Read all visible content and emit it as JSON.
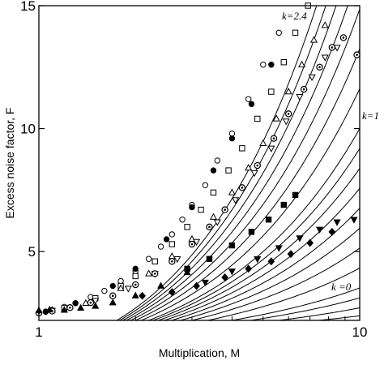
{
  "chart_data": {
    "type": "scatter",
    "xlabel": "Multiplication, M",
    "ylabel": "Excess noise factor, F",
    "xscale": "log",
    "xlim": [
      1,
      10
    ],
    "ylim": [
      2.2,
      15
    ],
    "x_ticks": [
      {
        "value": 1,
        "label": "1"
      },
      {
        "value": 10,
        "label": "10"
      }
    ],
    "y_ticks": [
      {
        "value": 5,
        "label": "5"
      },
      {
        "value": 10,
        "label": "10"
      },
      {
        "value": 15,
        "label": "15"
      }
    ],
    "grid": false,
    "curve_parameter_values": [
      0,
      0.03,
      0.06,
      0.1,
      0.15,
      0.2,
      0.3,
      0.4,
      0.5,
      0.6,
      0.7,
      0.8,
      0.9,
      1,
      1.2,
      1.4,
      1.6,
      1.8,
      2.0,
      2.2,
      2.4
    ],
    "annotations": {
      "top_curve": "k=2.4",
      "middle_curve": "k=1",
      "bottom_curve": "k =0"
    },
    "series": [
      {
        "marker": "circle-open",
        "color": "#000000",
        "points": [
          [
            1.05,
            2.56
          ],
          [
            1.1,
            2.62
          ],
          [
            1.2,
            2.75
          ],
          [
            1.3,
            2.9
          ],
          [
            1.45,
            3.15
          ],
          [
            1.6,
            3.4
          ],
          [
            1.8,
            3.8
          ],
          [
            2.0,
            4.2
          ],
          [
            2.2,
            4.7
          ],
          [
            2.4,
            5.2
          ],
          [
            2.6,
            5.7
          ],
          [
            2.8,
            6.3
          ],
          [
            3.0,
            6.9
          ],
          [
            3.3,
            7.7
          ],
          [
            3.6,
            8.7
          ],
          [
            4.0,
            9.8
          ],
          [
            4.5,
            11.2
          ],
          [
            5.0,
            12.6
          ],
          [
            5.6,
            13.9
          ]
        ]
      },
      {
        "marker": "circle-filled",
        "color": "#000000",
        "points": [
          [
            1.05,
            2.55
          ],
          [
            1.3,
            2.9
          ],
          [
            1.7,
            3.6
          ],
          [
            2.0,
            4.3
          ],
          [
            2.5,
            5.5
          ],
          [
            3.0,
            6.8
          ],
          [
            3.5,
            8.3
          ],
          [
            4.0,
            9.6
          ],
          [
            4.6,
            11.0
          ],
          [
            5.3,
            12.6
          ]
        ]
      },
      {
        "marker": "square-open",
        "color": "#000000",
        "points": [
          [
            1.2,
            2.7
          ],
          [
            1.5,
            3.1
          ],
          [
            1.8,
            3.6
          ],
          [
            2.0,
            4.0
          ],
          [
            2.3,
            4.6
          ],
          [
            2.6,
            5.3
          ],
          [
            2.9,
            6.0
          ],
          [
            3.2,
            6.7
          ],
          [
            3.5,
            7.4
          ],
          [
            3.9,
            8.3
          ],
          [
            4.3,
            9.2
          ],
          [
            4.8,
            10.4
          ],
          [
            5.3,
            11.5
          ],
          [
            5.8,
            12.7
          ],
          [
            6.3,
            13.9
          ],
          [
            6.9,
            15.0
          ]
        ]
      },
      {
        "marker": "triangle-open",
        "color": "#000000",
        "points": [
          [
            1.1,
            2.62
          ],
          [
            1.4,
            2.9
          ],
          [
            1.8,
            3.5
          ],
          [
            2.2,
            4.1
          ],
          [
            2.6,
            4.8
          ],
          [
            3.0,
            5.5
          ],
          [
            3.5,
            6.4
          ],
          [
            4.0,
            7.4
          ],
          [
            4.5,
            8.4
          ],
          [
            5.0,
            9.4
          ],
          [
            5.5,
            10.4
          ],
          [
            6.0,
            11.5
          ],
          [
            6.6,
            12.6
          ],
          [
            7.2,
            13.6
          ],
          [
            7.8,
            14.2
          ]
        ]
      },
      {
        "marker": "triangle-down-open",
        "color": "#000000",
        "points": [
          [
            1.1,
            2.6
          ],
          [
            1.5,
            3.0
          ],
          [
            1.9,
            3.5
          ],
          [
            2.3,
            4.1
          ],
          [
            2.7,
            4.7
          ],
          [
            3.1,
            5.4
          ],
          [
            3.6,
            6.2
          ],
          [
            4.1,
            7.1
          ],
          [
            4.7,
            8.2
          ],
          [
            5.3,
            9.2
          ],
          [
            5.9,
            10.3
          ],
          [
            6.5,
            11.3
          ],
          [
            7.1,
            12.1
          ],
          [
            7.8,
            12.9
          ],
          [
            8.5,
            13.3
          ]
        ]
      },
      {
        "marker": "circle-dot",
        "color": "#000000",
        "points": [
          [
            1.0,
            2.5
          ],
          [
            1.1,
            2.58
          ],
          [
            1.25,
            2.72
          ],
          [
            1.45,
            2.92
          ],
          [
            1.7,
            3.2
          ],
          [
            2.0,
            3.65
          ],
          [
            2.3,
            4.1
          ],
          [
            2.6,
            4.6
          ],
          [
            3.0,
            5.3
          ],
          [
            3.4,
            6.0
          ],
          [
            3.8,
            6.7
          ],
          [
            4.3,
            7.6
          ],
          [
            4.8,
            8.5
          ],
          [
            5.4,
            9.6
          ],
          [
            6.0,
            10.6
          ],
          [
            6.7,
            11.6
          ],
          [
            7.5,
            12.5
          ],
          [
            8.2,
            13.3
          ],
          [
            8.9,
            13.7
          ],
          [
            9.8,
            13.0
          ]
        ]
      },
      {
        "marker": "triangle-filled",
        "color": "#000000",
        "points": [
          [
            1.0,
            2.6
          ],
          [
            1.08,
            2.63
          ],
          [
            1.2,
            2.62
          ],
          [
            1.35,
            2.7
          ],
          [
            1.5,
            2.78
          ],
          [
            1.7,
            2.92
          ],
          [
            2.0,
            3.2
          ],
          [
            2.4,
            3.6
          ],
          [
            2.9,
            4.15
          ]
        ]
      },
      {
        "marker": "square-filled",
        "color": "#000000",
        "points": [
          [
            2.9,
            4.3
          ],
          [
            3.4,
            4.7
          ],
          [
            4.0,
            5.25
          ],
          [
            4.6,
            5.8
          ],
          [
            5.2,
            6.3
          ],
          [
            5.8,
            6.9
          ],
          [
            6.3,
            7.3
          ]
        ]
      },
      {
        "marker": "triangle-down-filled",
        "color": "#000000",
        "points": [
          [
            3.3,
            3.75
          ],
          [
            4.0,
            4.2
          ],
          [
            4.8,
            4.7
          ],
          [
            5.6,
            5.15
          ],
          [
            6.5,
            5.55
          ],
          [
            7.5,
            5.9
          ],
          [
            8.5,
            6.2
          ],
          [
            9.6,
            6.3
          ]
        ]
      },
      {
        "marker": "diamond-filled",
        "color": "#000000",
        "points": [
          [
            2.1,
            3.2
          ],
          [
            2.6,
            3.35
          ],
          [
            3.1,
            3.6
          ],
          [
            3.8,
            3.95
          ],
          [
            4.5,
            4.3
          ],
          [
            5.3,
            4.6
          ],
          [
            6.1,
            4.9
          ],
          [
            7.0,
            5.35
          ],
          [
            8.2,
            5.8
          ]
        ]
      }
    ]
  }
}
